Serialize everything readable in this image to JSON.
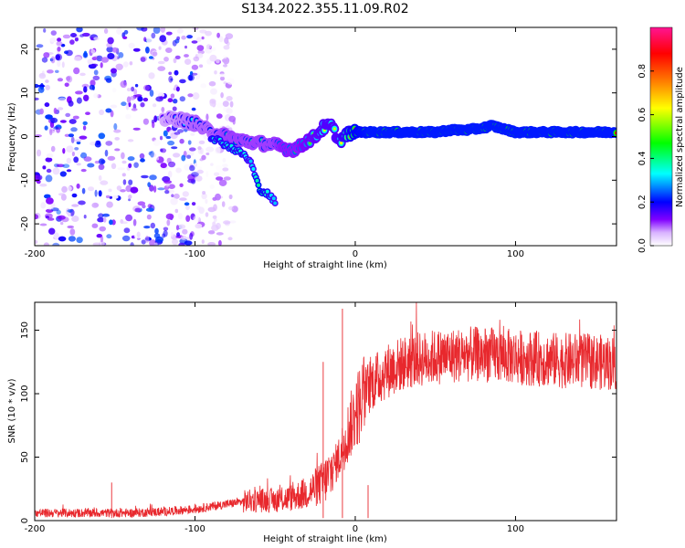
{
  "title": "S134.2022.355.11.09.R02",
  "chart_data": [
    {
      "type": "heatmap",
      "title": "",
      "xlabel": "Height of straight line (km)",
      "ylabel": "Frequency (Hz)",
      "xlim": [
        -200,
        163
      ],
      "ylim": [
        -25,
        25
      ],
      "xticks": [
        -200,
        -100,
        0,
        100
      ],
      "yticks": [
        -20,
        -10,
        0,
        10,
        20
      ],
      "colorbar": {
        "label": "Normalized spectral amplitude",
        "range": [
          0,
          1
        ],
        "ticks": [
          0.0,
          0.2,
          0.4,
          0.6,
          0.8
        ],
        "colormap": [
          "#ffffff",
          "#d9b3ff",
          "#8000ff",
          "#0000ff",
          "#00ffff",
          "#00ff00",
          "#ffff00",
          "#ff8000",
          "#ff0000",
          "#ff0080"
        ]
      },
      "ridge": {
        "x": [
          -120,
          -110,
          -100,
          -90,
          -80,
          -70,
          -60,
          -50,
          -45,
          -40,
          -35,
          -30,
          -25,
          -20,
          -15,
          -10,
          -5,
          0,
          10,
          20,
          30,
          40,
          50,
          60,
          70,
          80,
          85,
          90,
          100,
          110,
          120,
          130,
          140,
          150,
          163
        ],
        "y": [
          4,
          4,
          3,
          1,
          0,
          -1,
          -1.5,
          -2,
          -2.5,
          -3,
          -2.5,
          -1,
          0,
          2,
          2.5,
          -1,
          0.5,
          1,
          1,
          1,
          1,
          1,
          1,
          1.5,
          1.5,
          2,
          2.5,
          2,
          1,
          1,
          1,
          1,
          1,
          1,
          1
        ],
        "amplitude": [
          0.25,
          0.3,
          0.35,
          0.35,
          0.4,
          0.4,
          0.4,
          0.4,
          0.45,
          0.45,
          0.45,
          0.5,
          0.55,
          0.6,
          0.6,
          0.6,
          0.7,
          0.8,
          0.85,
          0.85,
          0.85,
          0.85,
          0.85,
          0.85,
          0.85,
          0.85,
          0.85,
          0.85,
          0.85,
          0.85,
          0.85,
          0.85,
          0.85,
          0.85,
          0.85
        ]
      },
      "branch": {
        "x": [
          -90,
          -80,
          -70,
          -65,
          -60,
          -55,
          -50
        ],
        "y": [
          0,
          -2,
          -4,
          -6,
          -12,
          -13,
          -15
        ],
        "amplitude": [
          0.35,
          0.35,
          0.35,
          0.3,
          0.4,
          0.35,
          0.3
        ]
      },
      "noise_region": {
        "x": [
          -200,
          -100
        ],
        "amplitude_max": 0.25
      }
    },
    {
      "type": "line",
      "title": "",
      "xlabel": "Height of straight line (km)",
      "ylabel": "SNR (10 * v/v)",
      "xlim": [
        -200,
        163
      ],
      "ylim": [
        0,
        172
      ],
      "xticks": [
        -200,
        -100,
        0,
        100
      ],
      "yticks": [
        0,
        50,
        100,
        150
      ],
      "color": "#e8282d",
      "series": [
        {
          "x": [
            -200,
            -180,
            -160,
            -140,
            -120,
            -110,
            -100,
            -90,
            -80,
            -70,
            -60,
            -50,
            -40,
            -30,
            -20,
            -15,
            -10,
            -5,
            0,
            5,
            10,
            20,
            30,
            40,
            50,
            60,
            70,
            80,
            90,
            100,
            110,
            120,
            130,
            140,
            150,
            163
          ],
          "values": [
            6,
            6,
            6,
            6,
            7,
            8,
            9,
            11,
            13,
            15,
            16,
            16,
            18,
            22,
            30,
            38,
            50,
            68,
            85,
            98,
            108,
            118,
            124,
            127,
            129,
            130,
            131,
            131,
            130,
            129,
            128,
            127,
            126,
            126,
            125,
            124
          ]
        }
      ],
      "spikes": [
        {
          "x": -152,
          "y": 30
        },
        {
          "x": -20,
          "y": 125
        },
        {
          "x": -8,
          "y": 167
        },
        {
          "x": 8,
          "y": 28
        }
      ]
    }
  ]
}
